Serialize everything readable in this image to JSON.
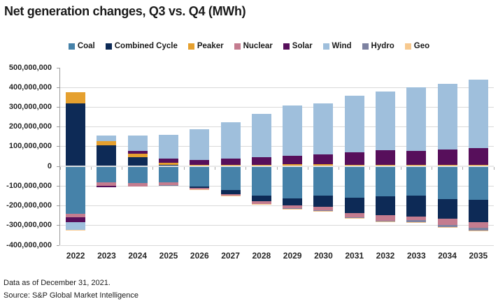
{
  "header": {
    "title": "Net generation changes, Q3 vs. Q4 (MWh)"
  },
  "footer": {
    "line1": "Data as of December 31, 2021.",
    "line2": "Source: S&P Global Market Intelligence"
  },
  "chart_data": {
    "type": "bar",
    "stacked": true,
    "title": "Net generation changes, Q3 vs. Q4 (MWh)",
    "unit": "MWh",
    "grid": true,
    "legend_position": "top",
    "background_color": "#ffffff",
    "gridline_color": "#d9d9d9",
    "categories": [
      "2022",
      "2023",
      "2024",
      "2025",
      "2026",
      "2027",
      "2028",
      "2029",
      "2030",
      "2031",
      "2032",
      "2033",
      "2034",
      "2035"
    ],
    "series": [
      {
        "name": "Coal",
        "color": "#4682A9",
        "values": [
          -241000000,
          -81000000,
          -84000000,
          -81000000,
          -102000000,
          -119000000,
          -149000000,
          -161000000,
          -148000000,
          -158000000,
          -152000000,
          -148000000,
          -167000000,
          -169000000
        ]
      },
      {
        "name": "Combined Cycle",
        "color": "#0D2A56",
        "values": [
          320000000,
          105000000,
          45000000,
          7000000,
          -8000000,
          -21000000,
          -28000000,
          -38000000,
          -56000000,
          -78000000,
          -96000000,
          -105000000,
          -100000000,
          -115000000
        ]
      },
      {
        "name": "Peaker",
        "color": "#E5A02F",
        "values": [
          55000000,
          24000000,
          19000000,
          12000000,
          7000000,
          8000000,
          9000000,
          11000000,
          11000000,
          8000000,
          8000000,
          8000000,
          8000000,
          8000000
        ]
      },
      {
        "name": "Nuclear",
        "color": "#C47C8F",
        "values": [
          -17000000,
          -17000000,
          -17000000,
          -14000000,
          -6000000,
          -8000000,
          -14000000,
          -12000000,
          -18000000,
          -23000000,
          -27000000,
          -21000000,
          -29000000,
          -29000000
        ]
      },
      {
        "name": "Solar",
        "color": "#570F5B",
        "values": [
          -25000000,
          -7000000,
          14000000,
          19000000,
          26000000,
          31000000,
          36000000,
          41000000,
          48000000,
          62000000,
          75000000,
          69000000,
          79000000,
          84000000
        ]
      },
      {
        "name": "Wind",
        "color": "#9FBFDC",
        "values": [
          -39000000,
          27000000,
          78000000,
          122000000,
          154000000,
          185000000,
          222000000,
          255000000,
          261000000,
          288000000,
          298000000,
          325000000,
          330000000,
          349000000
        ]
      },
      {
        "name": "Hydro",
        "color": "#7D82A1",
        "values": [
          0,
          0,
          0,
          -4000000,
          0,
          0,
          0,
          -3000000,
          -3000000,
          -3000000,
          -3000000,
          -10000000,
          -11000000,
          -13000000
        ]
      },
      {
        "name": "Geo",
        "color": "#F7C98F",
        "values": [
          -5000000,
          0,
          0,
          0,
          -2000000,
          -2000000,
          -3000000,
          -2000000,
          -2000000,
          -2000000,
          -2000000,
          -4000000,
          -5000000,
          -4000000
        ]
      }
    ],
    "y_axis": {
      "min": -400000000,
      "max": 500000000,
      "step": 100000000,
      "tick_labels": [
        "500,000,000",
        "400,000,000",
        "300,000,000",
        "200,000,000",
        "100,000,000",
        "0",
        "-100,000,000",
        "-200,000,000",
        "-300,000,000",
        "-400,000,000"
      ]
    }
  }
}
